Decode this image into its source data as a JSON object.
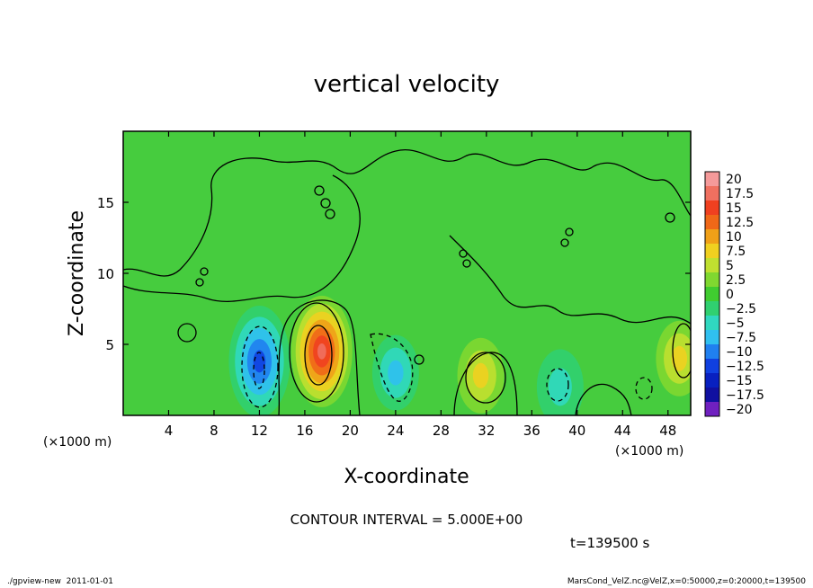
{
  "chart_data": {
    "type": "heatmap",
    "title": "vertical velocity",
    "xlabel": "X-coordinate",
    "ylabel": "Z-coordinate",
    "x_units_left": "(×1000 m)",
    "x_units_right": "(×1000 m)",
    "xlim": [
      0,
      50
    ],
    "ylim": [
      0,
      20
    ],
    "x_ticks": [
      4,
      8,
      12,
      16,
      20,
      24,
      28,
      32,
      36,
      40,
      44,
      48
    ],
    "y_ticks": [
      5,
      10,
      15
    ],
    "colorbar": {
      "levels": [
        "20",
        "17.5",
        "15",
        "12.5",
        "10",
        "7.5",
        "5",
        "2.5",
        "0",
        "−2.5",
        "−5",
        "−7.5",
        "−10",
        "−12.5",
        "−15",
        "−17.5",
        "−20"
      ],
      "colors": [
        "#f59a9a",
        "#f07060",
        "#f04020",
        "#f06818",
        "#f0a018",
        "#f0d020",
        "#c0e030",
        "#80d830",
        "#40cc30",
        "#30d070",
        "#30d8c0",
        "#30c0f0",
        "#2080f0",
        "#1040e0",
        "#0820c0",
        "#1010a0",
        "#7020c0"
      ]
    },
    "features": [
      {
        "x": 17.5,
        "z": 4.5,
        "w": 18,
        "kind": "updraft"
      },
      {
        "x": 12,
        "z": 3.8,
        "w": -12,
        "kind": "downdraft"
      },
      {
        "x": 24,
        "z": 3.0,
        "w": -7,
        "kind": "downdraft"
      },
      {
        "x": 31.5,
        "z": 2.8,
        "w": 7,
        "kind": "updraft"
      },
      {
        "x": 38.5,
        "z": 2.0,
        "w": -6,
        "kind": "downdraft"
      },
      {
        "x": 49,
        "z": 4.0,
        "w": 7,
        "kind": "updraft"
      }
    ],
    "contour_interval_text": "CONTOUR INTERVAL = 5.000E+00",
    "time_text": "t=139500 s"
  },
  "footer": {
    "left": "./gpview-new  2011-01-01",
    "right": "MarsCond_VelZ.nc@VelZ,x=0:50000,z=0:20000,t=139500"
  }
}
